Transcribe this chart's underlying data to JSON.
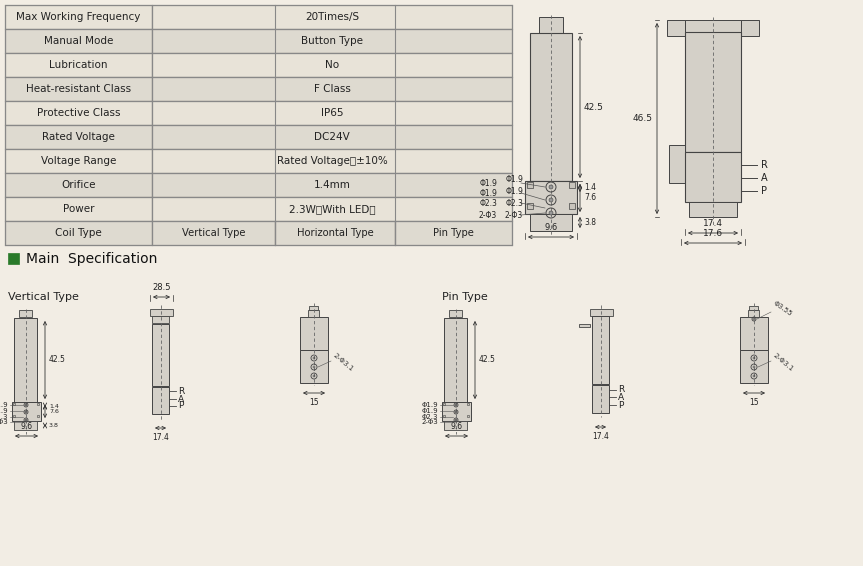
{
  "bg_color": "#f2ede4",
  "table_bg_light": "#e8e3d8",
  "table_bg_dark": "#dedad0",
  "table_border": "#888888",
  "shape_fill": "#d4d0c8",
  "shape_fill2": "#c8c4bc",
  "shape_edge": "#444444",
  "dim_color": "#333333",
  "green_color": "#2a7a2a",
  "table_rows": [
    [
      "Max Working Frequency",
      "20Times/S",
      "",
      ""
    ],
    [
      "Manual Mode",
      "Button Type",
      "",
      ""
    ],
    [
      "Lubrication",
      "No",
      "",
      ""
    ],
    [
      "Heat-resistant Class",
      "F Class",
      "",
      ""
    ],
    [
      "Protective Class",
      "IP65",
      "",
      ""
    ],
    [
      "Rated Voltage",
      "DC24V",
      "",
      ""
    ],
    [
      "Voltage Range",
      "Rated Voltage：±10%",
      "",
      ""
    ],
    [
      "Orifice",
      "1.4mm",
      "",
      ""
    ],
    [
      "Power",
      "2.3W（With LED）",
      "",
      ""
    ],
    [
      "Coil Type",
      "Vertical Type",
      "Horizontal Type",
      "Pin Type"
    ]
  ],
  "section_title": "Main  Specification",
  "vertical_type_label": "Vertical Type",
  "pin_type_label": "Pin Type"
}
